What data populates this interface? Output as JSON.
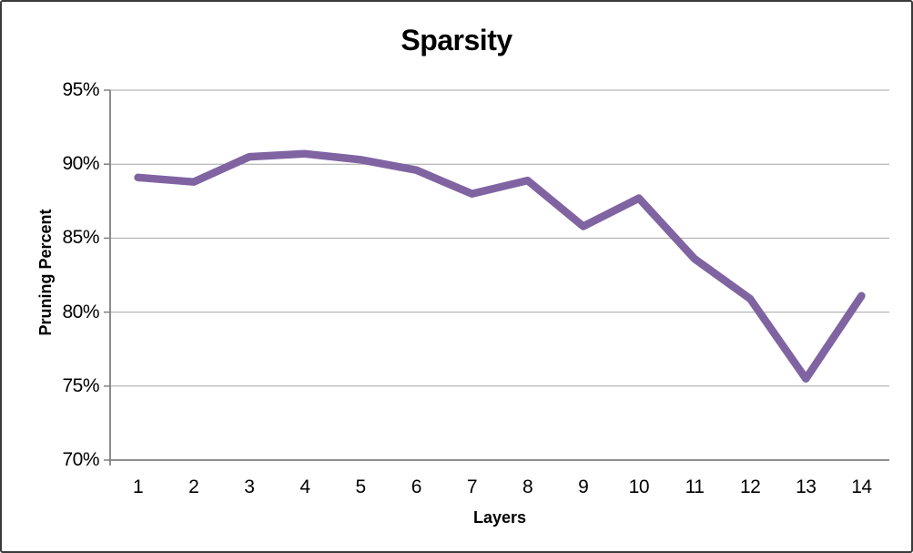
{
  "chart_data": {
    "type": "line",
    "title": "Sparsity",
    "xlabel": "Layers",
    "ylabel": "Pruning Percent",
    "categories": [
      "1",
      "2",
      "3",
      "4",
      "5",
      "6",
      "7",
      "8",
      "9",
      "10",
      "11",
      "12",
      "13",
      "14"
    ],
    "values": [
      89.1,
      88.8,
      90.5,
      90.7,
      90.3,
      89.6,
      88.0,
      88.9,
      85.8,
      87.7,
      83.6,
      80.9,
      75.5,
      81.1
    ],
    "ylim": [
      70,
      95
    ],
    "ytick_values": [
      70,
      75,
      80,
      85,
      90,
      95
    ],
    "ytick_labels": [
      "70%",
      "75%",
      "80%",
      "85%",
      "90%",
      "95%"
    ],
    "grid": true,
    "legend": "none",
    "markers": "none",
    "colors": {
      "line": "#8064A2",
      "gridline": "#A6A6A6",
      "axis": "#808080",
      "frame_border": "#3B3B3B",
      "background": "#FFFFFF",
      "text": "#000000"
    }
  }
}
